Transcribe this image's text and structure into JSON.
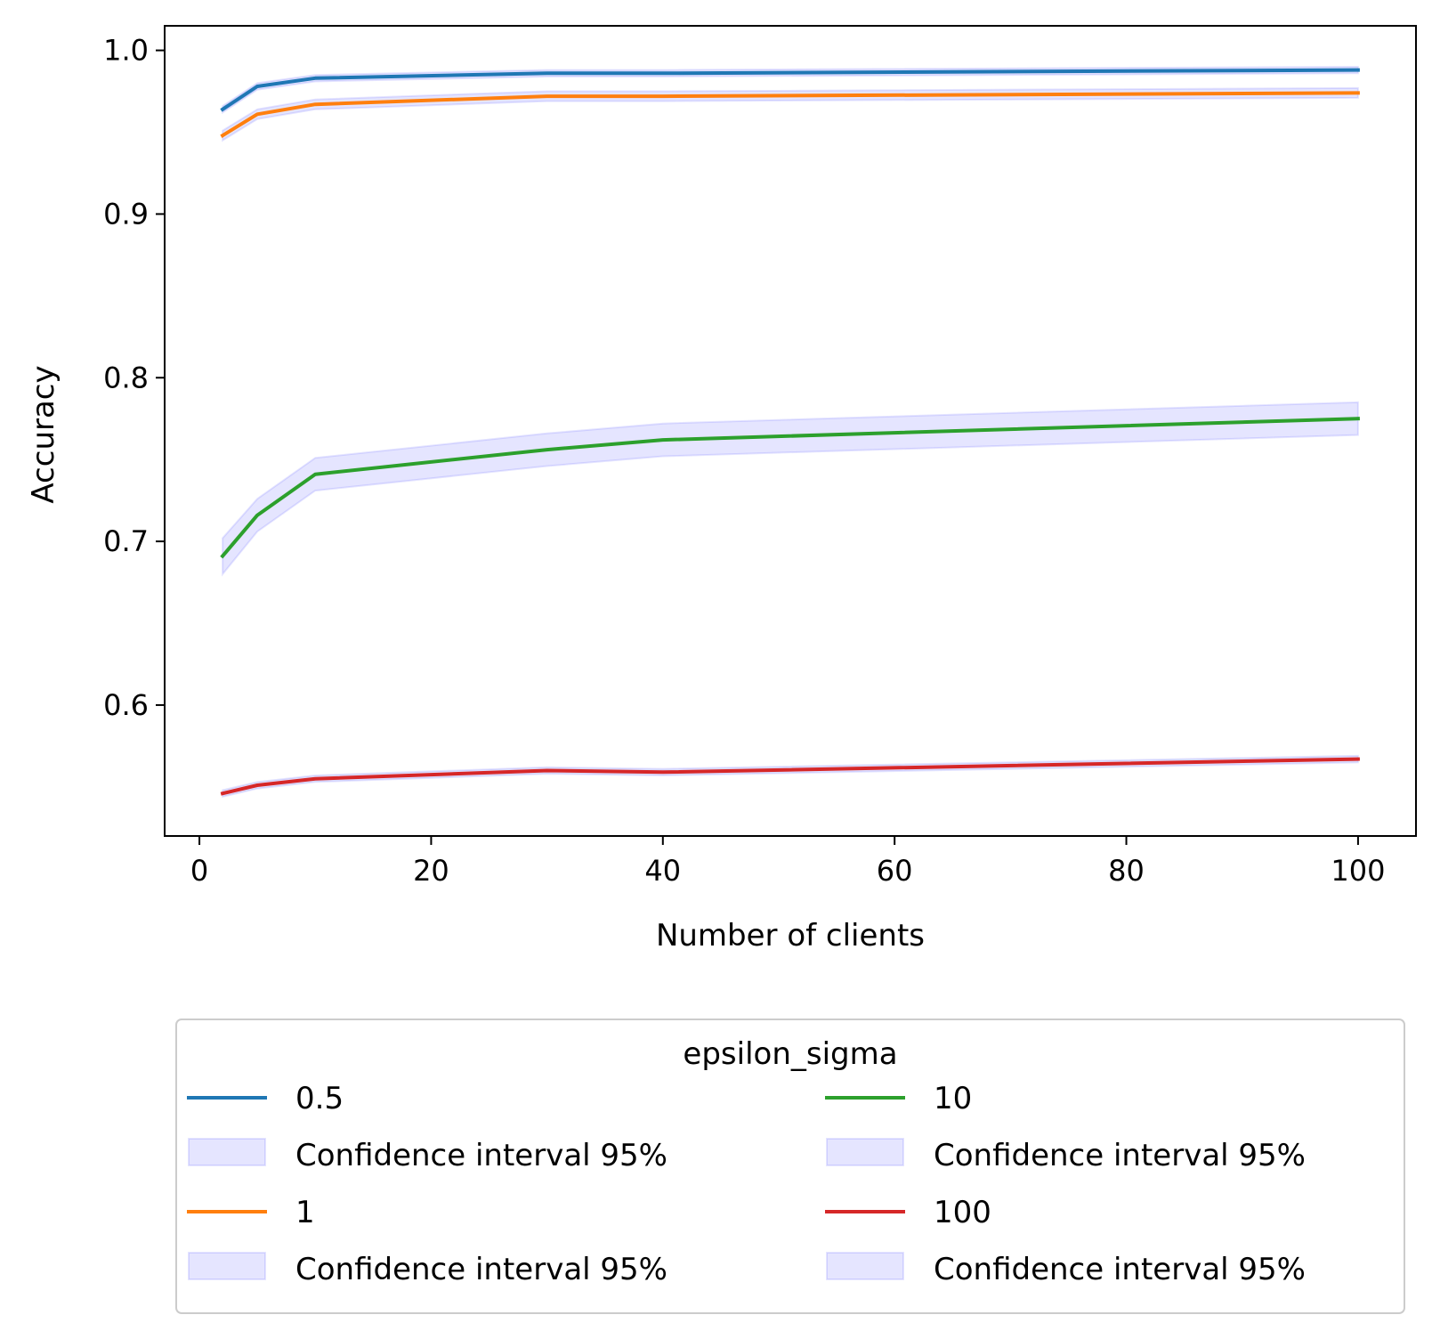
{
  "chart_data": {
    "type": "line",
    "title": "",
    "xlabel": "Number of clients",
    "ylabel": "Accuracy",
    "xlim": [
      -3,
      105
    ],
    "ylim": [
      0.52,
      1.015
    ],
    "x_ticks": [
      0,
      20,
      40,
      60,
      80,
      100
    ],
    "x_tick_labels": [
      "0",
      "20",
      "40",
      "60",
      "80",
      "100"
    ],
    "y_ticks": [
      0.6,
      0.7,
      0.8,
      0.9,
      1.0
    ],
    "y_tick_labels": [
      "0.6",
      "0.7",
      "0.8",
      "0.9",
      "1.0"
    ],
    "grid": false,
    "x": [
      2,
      5,
      10,
      30,
      40,
      100
    ],
    "series": [
      {
        "name": "0.5",
        "color": "#1f77b4",
        "values": [
          0.964,
          0.978,
          0.983,
          0.986,
          0.986,
          0.988
        ],
        "ci_lower": [
          0.962,
          0.976,
          0.981,
          0.984,
          0.984,
          0.986
        ],
        "ci_upper": [
          0.966,
          0.98,
          0.985,
          0.988,
          0.988,
          0.99
        ]
      },
      {
        "name": "1",
        "color": "#ff7f0e",
        "values": [
          0.948,
          0.961,
          0.967,
          0.972,
          0.972,
          0.974
        ],
        "ci_lower": [
          0.945,
          0.958,
          0.964,
          0.969,
          0.969,
          0.971
        ],
        "ci_upper": [
          0.951,
          0.964,
          0.97,
          0.975,
          0.975,
          0.977
        ]
      },
      {
        "name": "10",
        "color": "#2ca02c",
        "values": [
          0.691,
          0.716,
          0.741,
          0.756,
          0.762,
          0.775
        ],
        "ci_lower": [
          0.68,
          0.706,
          0.731,
          0.746,
          0.752,
          0.765
        ],
        "ci_upper": [
          0.702,
          0.726,
          0.751,
          0.766,
          0.772,
          0.785
        ]
      },
      {
        "name": "100",
        "color": "#d62728",
        "values": [
          0.546,
          0.551,
          0.555,
          0.56,
          0.559,
          0.567
        ],
        "ci_lower": [
          0.544,
          0.549,
          0.553,
          0.558,
          0.557,
          0.565
        ],
        "ci_upper": [
          0.548,
          0.553,
          0.557,
          0.562,
          0.561,
          0.569
        ]
      }
    ],
    "ci_color": "#0000ff",
    "legend": {
      "title": "epsilon_sigma",
      "placement": "below",
      "ci_label": "Confidence interval 95%"
    }
  }
}
